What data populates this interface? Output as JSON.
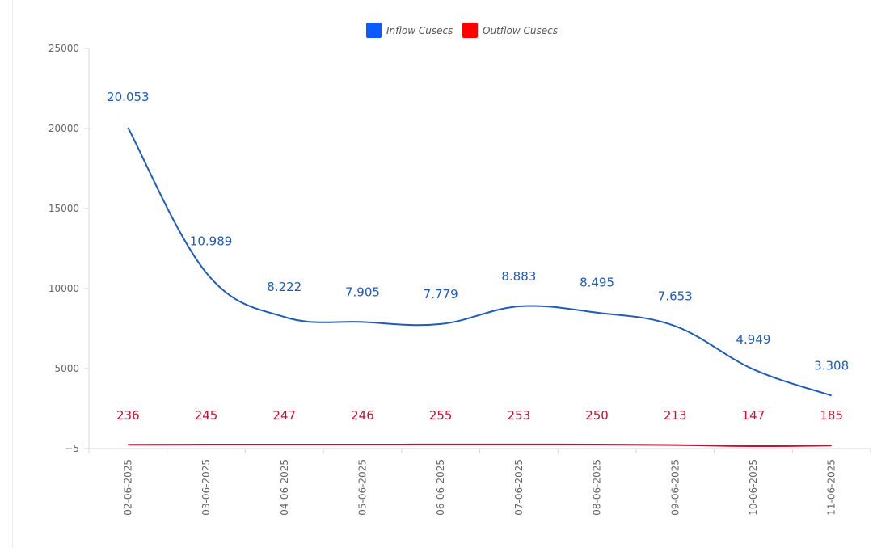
{
  "chart_data": {
    "type": "line",
    "x": [
      "02-06-2025",
      "03-06-2025",
      "04-06-2025",
      "05-06-2025",
      "06-06-2025",
      "07-06-2025",
      "08-06-2025",
      "09-06-2025",
      "10-06-2025",
      "11-06-2025"
    ],
    "series": [
      {
        "name": "Inflow Cusecs",
        "color": "#1f5bb8",
        "legend_color": "#0a5cff",
        "values": [
          20053,
          10989,
          8222,
          7905,
          7779,
          8883,
          8495,
          7653,
          4949,
          3308
        ],
        "data_labels": [
          "20.053",
          "10.989",
          "8.222",
          "7.905",
          "7.779",
          "8.883",
          "8.495",
          "7.653",
          "4.949",
          "3.308"
        ]
      },
      {
        "name": "Outflow Cusecs",
        "color": "#c8102e",
        "legend_color": "#ff0000",
        "values": [
          236,
          245,
          247,
          246,
          255,
          253,
          250,
          213,
          147,
          185
        ],
        "data_labels": [
          "236",
          "245",
          "247",
          "246",
          "255",
          "253",
          "250",
          "213",
          "147",
          "185"
        ]
      }
    ],
    "y_ticks": [
      "25000",
      "20000",
      "15000",
      "10000",
      "5000",
      "−5"
    ],
    "y_tick_values": [
      25000,
      20000,
      15000,
      10000,
      5000,
      -5
    ],
    "ylim": [
      -5,
      25000
    ],
    "legend_position": "top-center",
    "grid": false
  }
}
